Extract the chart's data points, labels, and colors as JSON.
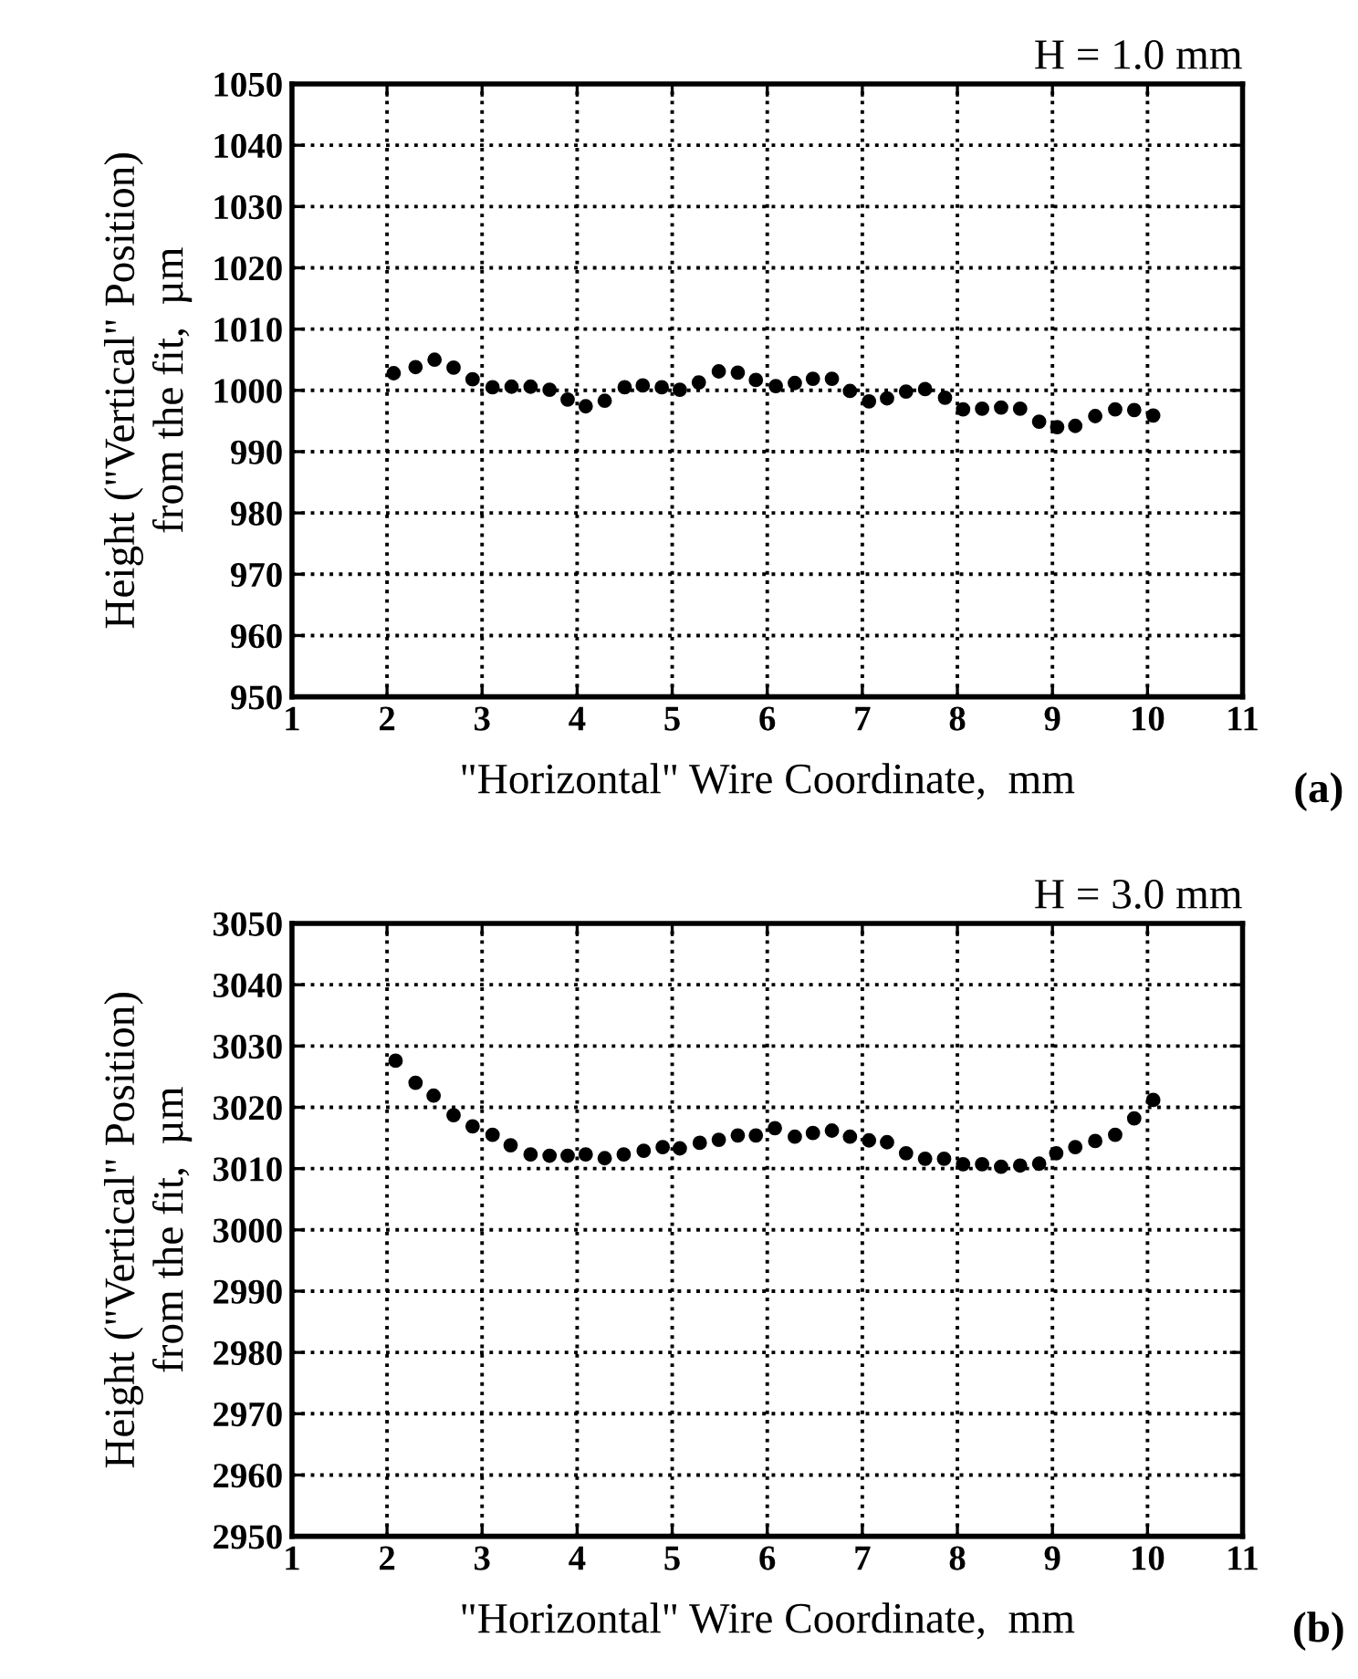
{
  "chart_data": [
    {
      "type": "scatter",
      "title": "H = 1.0 mm",
      "xlabel": "\"Horizontal\" Wire Coordinate,  mm",
      "ylabel": "Height (\"Vertical\" Position)\nfrom the fit,  µm",
      "annotations": [
        "(a)"
      ],
      "series": [
        {
          "color": "#000000",
          "x": [
            2.07,
            2.3,
            2.5,
            2.7,
            2.9,
            3.11,
            3.31,
            3.51,
            3.71,
            3.9,
            4.09,
            4.29,
            4.5,
            4.69,
            4.89,
            5.08,
            5.28,
            5.49,
            5.69,
            5.88,
            6.09,
            6.29,
            6.48,
            6.68,
            6.87,
            7.07,
            7.26,
            7.46,
            7.66,
            7.87,
            8.06,
            8.26,
            8.46,
            8.66,
            8.86,
            9.05,
            9.24,
            9.45,
            9.66,
            9.86,
            10.06
          ],
          "values": [
            1002.8,
            1003.8,
            1005,
            1003.7,
            1001.8,
            1000.5,
            1000.6,
            1000.6,
            1000.1,
            998.5,
            997.4,
            998.3,
            1000.5,
            1000.8,
            1000.5,
            1000.1,
            1001.3,
            1003.1,
            1002.9,
            1001.7,
            1000.7,
            1001.2,
            1001.9,
            1001.9,
            999.9,
            998.2,
            998.7,
            999.8,
            1000.2,
            998.8,
            996.9,
            997.0,
            997.2,
            997.0,
            994.9,
            994.0,
            994.2,
            995.8,
            996.9,
            996.8,
            995.9
          ]
        }
      ],
      "marker": "circle",
      "grid": true,
      "xlim": [
        1,
        11
      ],
      "xticks": [
        1,
        2,
        3,
        4,
        5,
        6,
        7,
        8,
        9,
        10,
        11
      ],
      "ylim": [
        950,
        1050
      ],
      "yticks": [
        950,
        960,
        970,
        980,
        990,
        1000,
        1010,
        1020,
        1030,
        1040,
        1050
      ]
    },
    {
      "type": "scatter",
      "title": "H = 3.0 mm",
      "xlabel": "\"Horizontal\" Wire Coordinate,  mm",
      "ylabel": "Height (\"Vertical\" Position)\nfrom the fit,  µm",
      "annotations": [
        "(b)"
      ],
      "series": [
        {
          "color": "#000000",
          "x": [
            2.09,
            2.3,
            2.49,
            2.7,
            2.9,
            3.11,
            3.3,
            3.51,
            3.71,
            3.9,
            4.09,
            4.29,
            4.49,
            4.7,
            4.9,
            5.08,
            5.29,
            5.49,
            5.69,
            5.88,
            6.08,
            6.29,
            6.48,
            6.68,
            6.87,
            7.07,
            7.26,
            7.46,
            7.66,
            7.86,
            8.06,
            8.26,
            8.46,
            8.66,
            8.86,
            9.04,
            9.24,
            9.45,
            9.66,
            9.86,
            10.06
          ],
          "values": [
            3027.6,
            3024.0,
            3021.9,
            3018.7,
            3016.9,
            3015.5,
            3013.8,
            3012.3,
            3012.1,
            3012.1,
            3012.3,
            3011.7,
            3012.3,
            3012.9,
            3013.5,
            3013.3,
            3014.2,
            3014.7,
            3015.4,
            3015.4,
            3016.6,
            3015.2,
            3015.8,
            3016.2,
            3015.2,
            3014.6,
            3014.3,
            3012.5,
            3011.6,
            3011.6,
            3010.7,
            3010.7,
            3010.3,
            3010.5,
            3010.8,
            3012.5,
            3013.5,
            3014.5,
            3015.5,
            3018.2,
            3021.2
          ]
        }
      ],
      "marker": "circle",
      "grid": true,
      "xlim": [
        1,
        11
      ],
      "xticks": [
        1,
        2,
        3,
        4,
        5,
        6,
        7,
        8,
        9,
        10,
        11
      ],
      "ylim": [
        2950,
        3050
      ],
      "yticks": [
        2950,
        2960,
        2970,
        2980,
        2990,
        3000,
        3010,
        3020,
        3030,
        3040,
        3050
      ]
    }
  ]
}
